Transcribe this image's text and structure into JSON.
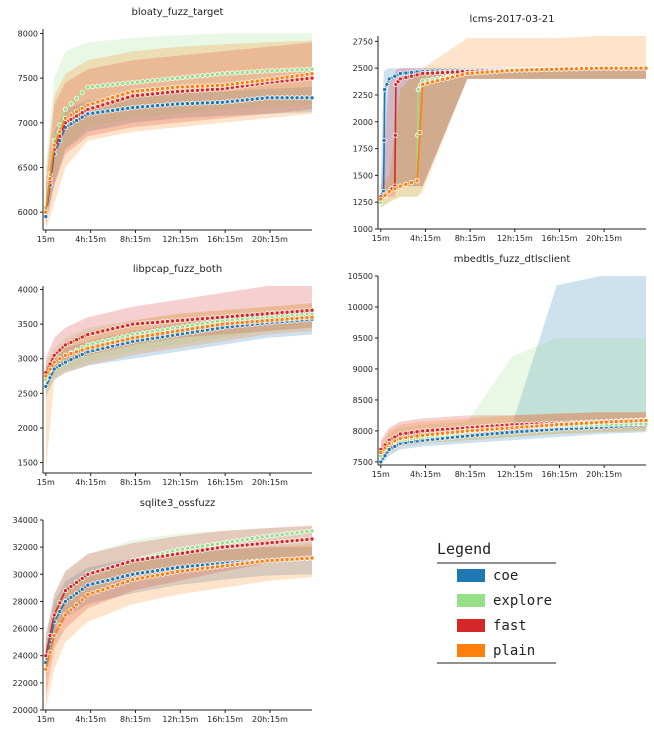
{
  "legend": {
    "title": "Legend",
    "entries": [
      {
        "name": "coe",
        "color": "#1f77b4"
      },
      {
        "name": "explore",
        "color": "#98df8a"
      },
      {
        "name": "fast",
        "color": "#d62728"
      },
      {
        "name": "plain",
        "color": "#ff7f0e"
      }
    ]
  },
  "chart_data": [
    {
      "type": "line",
      "title": "bloaty_fuzz_target",
      "xlabel": "",
      "ylabel": "",
      "x_ticks": [
        "15m",
        "4h:15m",
        "8h:15m",
        "12h:15m",
        "16h:15m",
        "20h:15m"
      ],
      "x_tick_hours": [
        0.25,
        4.25,
        8.25,
        12.25,
        16.25,
        20.25
      ],
      "xlim_hours": [
        0,
        24
      ],
      "y_ticks": [
        6000,
        6500,
        7000,
        7500,
        8000
      ],
      "ylim": [
        5800,
        8050
      ],
      "series": [
        {
          "name": "coe",
          "x": [
            0.25,
            1,
            2,
            4,
            8,
            12,
            16,
            20,
            24
          ],
          "y": [
            5950,
            6650,
            6950,
            7100,
            7170,
            7210,
            7230,
            7280,
            7280
          ],
          "lo": [
            5900,
            6300,
            6700,
            6900,
            7000,
            7050,
            7080,
            7100,
            7120
          ],
          "hi": [
            6100,
            6900,
            7150,
            7250,
            7300,
            7330,
            7350,
            7380,
            7400
          ]
        },
        {
          "name": "explore",
          "x": [
            0.25,
            1,
            2,
            4,
            8,
            12,
            16,
            20,
            24
          ],
          "y": [
            6050,
            6800,
            7150,
            7400,
            7450,
            7500,
            7550,
            7580,
            7600
          ],
          "lo": [
            5850,
            6400,
            6700,
            6950,
            7050,
            7100,
            7150,
            7180,
            7200
          ],
          "hi": [
            6500,
            7500,
            7800,
            7900,
            7950,
            7980,
            8000,
            8000,
            8000
          ]
        },
        {
          "name": "fast",
          "x": [
            0.25,
            1,
            2,
            4,
            8,
            12,
            16,
            20,
            24
          ],
          "y": [
            6000,
            6700,
            7000,
            7150,
            7300,
            7350,
            7380,
            7450,
            7500
          ],
          "lo": [
            5850,
            6300,
            6650,
            6850,
            6950,
            7000,
            7050,
            7100,
            7150
          ],
          "hi": [
            6300,
            7200,
            7450,
            7600,
            7700,
            7750,
            7800,
            7850,
            7900
          ]
        },
        {
          "name": "plain",
          "x": [
            0.25,
            1,
            2,
            4,
            8,
            12,
            16,
            20,
            24
          ],
          "y": [
            6000,
            6750,
            7050,
            7200,
            7350,
            7400,
            7420,
            7480,
            7550
          ],
          "lo": [
            5800,
            6100,
            6500,
            6800,
            6900,
            6950,
            7000,
            7050,
            7100
          ],
          "hi": [
            6400,
            7300,
            7550,
            7700,
            7800,
            7850,
            7880,
            7900,
            7920
          ]
        }
      ]
    },
    {
      "type": "line",
      "title": "lcms-2017-03-21",
      "xlabel": "",
      "ylabel": "",
      "x_ticks": [
        "15m",
        "4h:15m",
        "8h:15m",
        "12h:15m",
        "16h:15m",
        "20h:15m"
      ],
      "x_tick_hours": [
        0.25,
        4.25,
        8.25,
        12.25,
        16.25,
        20.25
      ],
      "xlim_hours": [
        0,
        24
      ],
      "y_ticks": [
        1000,
        1250,
        1500,
        1750,
        2000,
        2250,
        2500,
        2750
      ],
      "ylim": [
        1000,
        2800
      ],
      "series": [
        {
          "name": "coe",
          "x": [
            0.25,
            0.5,
            0.6,
            1,
            2,
            4,
            8,
            12,
            16,
            20,
            24
          ],
          "y": [
            1300,
            1350,
            2300,
            2400,
            2450,
            2470,
            2480,
            2490,
            2490,
            2500,
            2500
          ],
          "lo": [
            1250,
            1300,
            1300,
            1400,
            1400,
            1400,
            2400,
            2400,
            2400,
            2400,
            2400
          ],
          "hi": [
            1400,
            2450,
            2480,
            2500,
            2500,
            2500,
            2500,
            2500,
            2500,
            2500,
            2500
          ]
        },
        {
          "name": "explore",
          "x": [
            0.25,
            1,
            2,
            3.5,
            3.6,
            4,
            8,
            12,
            16,
            20,
            24
          ],
          "y": [
            1250,
            1350,
            1400,
            1450,
            2300,
            2380,
            2450,
            2480,
            2490,
            2500,
            2500
          ],
          "lo": [
            1200,
            1250,
            1300,
            1300,
            1300,
            1400,
            2400,
            2400,
            2400,
            2400,
            2400
          ],
          "hi": [
            1300,
            1450,
            2300,
            2450,
            2450,
            2500,
            2500,
            2500,
            2500,
            2520,
            2520
          ]
        },
        {
          "name": "fast",
          "x": [
            0.25,
            1,
            1.5,
            1.6,
            2,
            4,
            8,
            12,
            16,
            20,
            24
          ],
          "y": [
            1300,
            1350,
            1400,
            2350,
            2400,
            2450,
            2470,
            2480,
            2490,
            2500,
            2500
          ],
          "lo": [
            1250,
            1300,
            1300,
            1350,
            1400,
            1400,
            2400,
            2400,
            2400,
            2400,
            2400
          ],
          "hi": [
            1350,
            2400,
            2450,
            2480,
            2500,
            2500,
            2500,
            2500,
            2500,
            2500,
            2500
          ]
        },
        {
          "name": "plain",
          "x": [
            0.25,
            1,
            2,
            3.5,
            4,
            8,
            12,
            16,
            20,
            24
          ],
          "y": [
            1280,
            1350,
            1400,
            1450,
            2350,
            2450,
            2480,
            2490,
            2500,
            2500
          ],
          "lo": [
            1200,
            1250,
            1300,
            1300,
            1350,
            2400,
            2400,
            2400,
            2400,
            2400
          ],
          "hi": [
            1400,
            1500,
            2300,
            2480,
            2500,
            2780,
            2780,
            2780,
            2800,
            2800
          ]
        }
      ]
    },
    {
      "type": "line",
      "title": "libpcap_fuzz_both",
      "xlabel": "",
      "ylabel": "",
      "x_ticks": [
        "15m",
        "4h:15m",
        "8h:15m",
        "12h:15m",
        "16h:15m",
        "20h:15m"
      ],
      "x_tick_hours": [
        0.25,
        4.25,
        8.25,
        12.25,
        16.25,
        20.25
      ],
      "xlim_hours": [
        0,
        24
      ],
      "y_ticks": [
        1500,
        2000,
        2500,
        3000,
        3500,
        4000
      ],
      "ylim": [
        1350,
        4050
      ],
      "series": [
        {
          "name": "coe",
          "x": [
            0.25,
            1,
            2,
            4,
            8,
            12,
            16,
            20,
            24
          ],
          "y": [
            2600,
            2850,
            2950,
            3100,
            3250,
            3350,
            3450,
            3520,
            3570
          ],
          "lo": [
            2450,
            2700,
            2800,
            2900,
            3000,
            3100,
            3200,
            3300,
            3350
          ],
          "hi": [
            2800,
            3000,
            3150,
            3250,
            3400,
            3500,
            3600,
            3650,
            3700
          ]
        },
        {
          "name": "explore",
          "x": [
            0.25,
            1,
            2,
            4,
            8,
            12,
            16,
            20,
            24
          ],
          "y": [
            2700,
            2950,
            3050,
            3200,
            3350,
            3450,
            3550,
            3600,
            3650
          ],
          "lo": [
            2500,
            2750,
            2850,
            2950,
            3100,
            3200,
            3300,
            3400,
            3450
          ],
          "hi": [
            2950,
            3150,
            3300,
            3450,
            3550,
            3650,
            3700,
            3750,
            3800
          ]
        },
        {
          "name": "fast",
          "x": [
            0.25,
            1,
            2,
            4,
            8,
            12,
            16,
            20,
            24
          ],
          "y": [
            2800,
            3050,
            3200,
            3350,
            3500,
            3550,
            3600,
            3650,
            3700
          ],
          "lo": [
            2550,
            2800,
            2950,
            3050,
            3200,
            3300,
            3350,
            3400,
            3450
          ],
          "hi": [
            3000,
            3300,
            3450,
            3600,
            3750,
            3850,
            3950,
            4050,
            4150
          ]
        },
        {
          "name": "plain",
          "x": [
            0.25,
            1,
            2,
            4,
            8,
            12,
            16,
            20,
            24
          ],
          "y": [
            2750,
            2950,
            3050,
            3150,
            3300,
            3400,
            3500,
            3550,
            3600
          ],
          "lo": [
            1300,
            2700,
            2800,
            2900,
            3050,
            3150,
            3250,
            3350,
            3400
          ],
          "hi": [
            2900,
            3100,
            3250,
            3400,
            3550,
            3650,
            3700,
            3750,
            3800
          ]
        }
      ]
    },
    {
      "type": "line",
      "title": "mbedtls_fuzz_dtlsclient",
      "xlabel": "",
      "ylabel": "",
      "x_ticks": [
        "15m",
        "4h:15m",
        "8h:15m",
        "12h:15m",
        "16h:15m",
        "20h:15m"
      ],
      "x_tick_hours": [
        0.25,
        4.25,
        8.25,
        12.25,
        16.25,
        20.25
      ],
      "xlim_hours": [
        0,
        24
      ],
      "y_ticks": [
        7500,
        8000,
        8500,
        9000,
        9500,
        10000,
        10500
      ],
      "ylim": [
        7450,
        10500
      ],
      "series": [
        {
          "name": "coe",
          "x": [
            0.25,
            1,
            2,
            4,
            8,
            12,
            16,
            20,
            24
          ],
          "y": [
            7500,
            7700,
            7800,
            7850,
            7920,
            7980,
            8030,
            8060,
            8100
          ],
          "lo": [
            7450,
            7600,
            7700,
            7750,
            7800,
            7850,
            7900,
            7950,
            7980
          ],
          "hi": [
            7650,
            7850,
            7950,
            8000,
            8050,
            8100,
            10350,
            10500,
            10500
          ]
        },
        {
          "name": "explore",
          "x": [
            0.25,
            1,
            2,
            4,
            8,
            12,
            16,
            20,
            24
          ],
          "y": [
            7600,
            7800,
            7850,
            7900,
            7980,
            8050,
            8080,
            8100,
            8120
          ],
          "lo": [
            7500,
            7650,
            7750,
            7800,
            7850,
            7900,
            7950,
            7980,
            8000
          ],
          "hi": [
            7750,
            7950,
            8050,
            8100,
            8150,
            9200,
            9500,
            9500,
            9500
          ]
        },
        {
          "name": "fast",
          "x": [
            0.25,
            1,
            2,
            4,
            8,
            12,
            16,
            20,
            24
          ],
          "y": [
            7700,
            7850,
            7950,
            8000,
            8050,
            8100,
            8120,
            8150,
            8180
          ],
          "lo": [
            7550,
            7700,
            7800,
            7850,
            7900,
            7950,
            8000,
            8020,
            8050
          ],
          "hi": [
            7850,
            8050,
            8150,
            8200,
            8250,
            8250,
            8280,
            8300,
            8300
          ]
        },
        {
          "name": "plain",
          "x": [
            0.25,
            1,
            2,
            4,
            8,
            12,
            16,
            20,
            24
          ],
          "y": [
            7650,
            7800,
            7880,
            7930,
            8000,
            8050,
            8100,
            8140,
            8170
          ],
          "lo": [
            7500,
            7650,
            7750,
            7800,
            7850,
            7900,
            7950,
            7980,
            8000
          ],
          "hi": [
            7800,
            8000,
            8100,
            8150,
            8200,
            8250,
            8280,
            8300,
            8300
          ]
        }
      ]
    },
    {
      "type": "line",
      "title": "sqlite3_ossfuzz",
      "xlabel": "",
      "ylabel": "",
      "x_ticks": [
        "15m",
        "4h:15m",
        "8h:15m",
        "12h:15m",
        "16h:15m",
        "20h:15m"
      ],
      "x_tick_hours": [
        0.25,
        4.25,
        8.25,
        12.25,
        16.25,
        20.25
      ],
      "xlim_hours": [
        0,
        24
      ],
      "y_ticks": [
        20000,
        22000,
        24000,
        26000,
        28000,
        30000,
        32000,
        34000
      ],
      "ylim": [
        20000,
        34000
      ],
      "series": [
        {
          "name": "coe",
          "x": [
            0.25,
            1,
            2,
            4,
            8,
            12,
            16,
            20,
            24
          ],
          "y": [
            23500,
            26500,
            28000,
            29200,
            30000,
            30500,
            30800,
            31000,
            31200
          ],
          "lo": [
            22500,
            25000,
            26800,
            27800,
            28600,
            29200,
            29600,
            29900,
            30000
          ],
          "hi": [
            25000,
            28000,
            29500,
            30500,
            31200,
            31600,
            31800,
            32000,
            32000
          ]
        },
        {
          "name": "explore",
          "x": [
            0.25,
            1,
            2,
            4,
            8,
            12,
            16,
            20,
            24
          ],
          "y": [
            24000,
            27000,
            28800,
            30000,
            31000,
            31800,
            32300,
            32800,
            33200
          ],
          "lo": [
            22500,
            25500,
            27200,
            28500,
            29500,
            30200,
            30800,
            31200,
            31500
          ],
          "hi": [
            25500,
            28500,
            30300,
            31500,
            32500,
            33000,
            33200,
            33400,
            33500
          ]
        },
        {
          "name": "fast",
          "x": [
            0.25,
            1,
            2,
            4,
            8,
            12,
            16,
            20,
            24
          ],
          "y": [
            24000,
            27000,
            28800,
            30000,
            31000,
            31500,
            32000,
            32300,
            32600
          ],
          "lo": [
            21000,
            24500,
            26000,
            27500,
            28800,
            29500,
            30200,
            30800,
            31200
          ],
          "hi": [
            25500,
            28500,
            30200,
            31500,
            32300,
            32800,
            33200,
            33400,
            33600
          ]
        },
        {
          "name": "plain",
          "x": [
            0.25,
            1,
            2,
            4,
            8,
            12,
            16,
            20,
            24
          ],
          "y": [
            23000,
            25500,
            27000,
            28500,
            29600,
            30200,
            30600,
            31000,
            31200
          ],
          "lo": [
            20000,
            23000,
            25000,
            26500,
            27800,
            28500,
            29000,
            29500,
            29800
          ],
          "hi": [
            24500,
            27500,
            29000,
            30200,
            31000,
            31500,
            31800,
            32000,
            32200
          ]
        }
      ]
    }
  ]
}
